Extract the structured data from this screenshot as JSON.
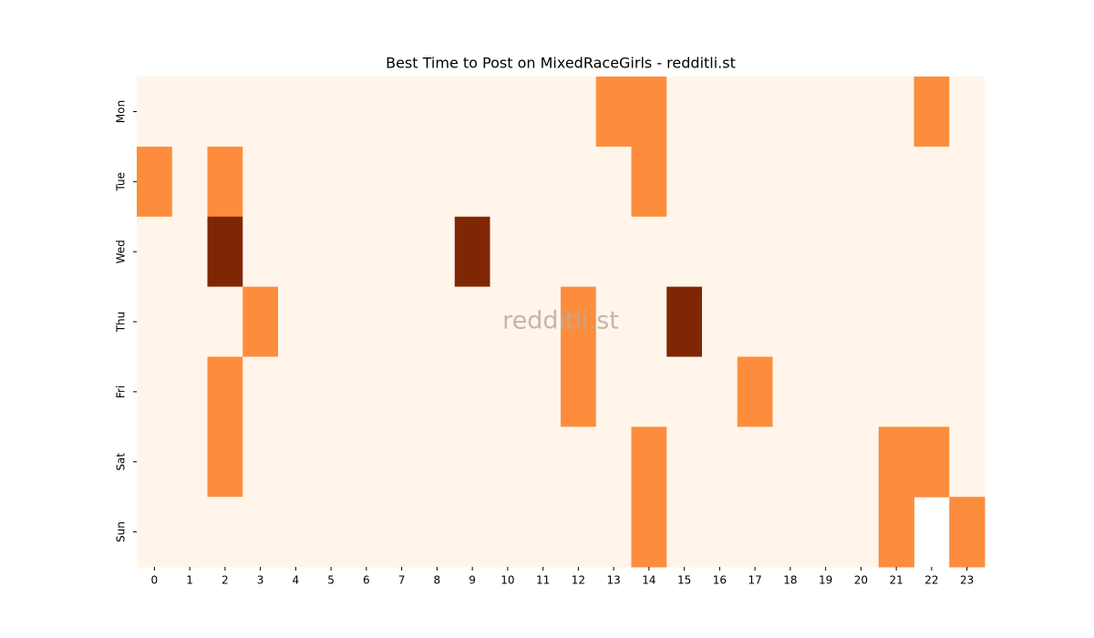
{
  "chart_data": {
    "type": "heatmap",
    "title": "Best Time to Post on MixedRaceGirls - redditli.st",
    "watermark": "redditli.st",
    "x": [
      0,
      1,
      2,
      3,
      4,
      5,
      6,
      7,
      8,
      9,
      10,
      11,
      12,
      13,
      14,
      15,
      16,
      17,
      18,
      19,
      20,
      21,
      22,
      23
    ],
    "y": [
      "Mon",
      "Tue",
      "Wed",
      "Thu",
      "Fri",
      "Sat",
      "Sun"
    ],
    "values": [
      [
        0,
        0,
        0,
        0,
        0,
        0,
        0,
        0,
        0,
        0,
        0,
        0,
        0,
        1,
        1,
        0,
        0,
        0,
        0,
        0,
        0,
        0,
        1,
        0
      ],
      [
        1,
        0,
        1,
        0,
        0,
        0,
        0,
        0,
        0,
        0,
        0,
        0,
        0,
        0,
        1,
        0,
        0,
        0,
        0,
        0,
        0,
        0,
        0,
        0
      ],
      [
        0,
        0,
        2,
        0,
        0,
        0,
        0,
        0,
        0,
        2,
        0,
        0,
        0,
        0,
        0,
        0,
        0,
        0,
        0,
        0,
        0,
        0,
        0,
        0
      ],
      [
        0,
        0,
        0,
        1,
        0,
        0,
        0,
        0,
        0,
        0,
        0,
        0,
        1,
        0,
        0,
        2,
        0,
        0,
        0,
        0,
        0,
        0,
        0,
        0
      ],
      [
        0,
        0,
        1,
        0,
        0,
        0,
        0,
        0,
        0,
        0,
        0,
        0,
        1,
        0,
        0,
        0,
        0,
        1,
        0,
        0,
        0,
        0,
        0,
        0
      ],
      [
        0,
        0,
        1,
        0,
        0,
        0,
        0,
        0,
        0,
        0,
        0,
        0,
        0,
        0,
        1,
        0,
        0,
        0,
        0,
        0,
        0,
        1,
        1,
        0
      ],
      [
        0,
        0,
        0,
        0,
        0,
        0,
        0,
        0,
        0,
        0,
        0,
        0,
        0,
        0,
        1,
        0,
        0,
        0,
        0,
        0,
        0,
        1,
        null,
        1
      ]
    ],
    "colors": [
      "#fff5eb",
      "#fd8d3c",
      "#7f2704"
    ]
  }
}
